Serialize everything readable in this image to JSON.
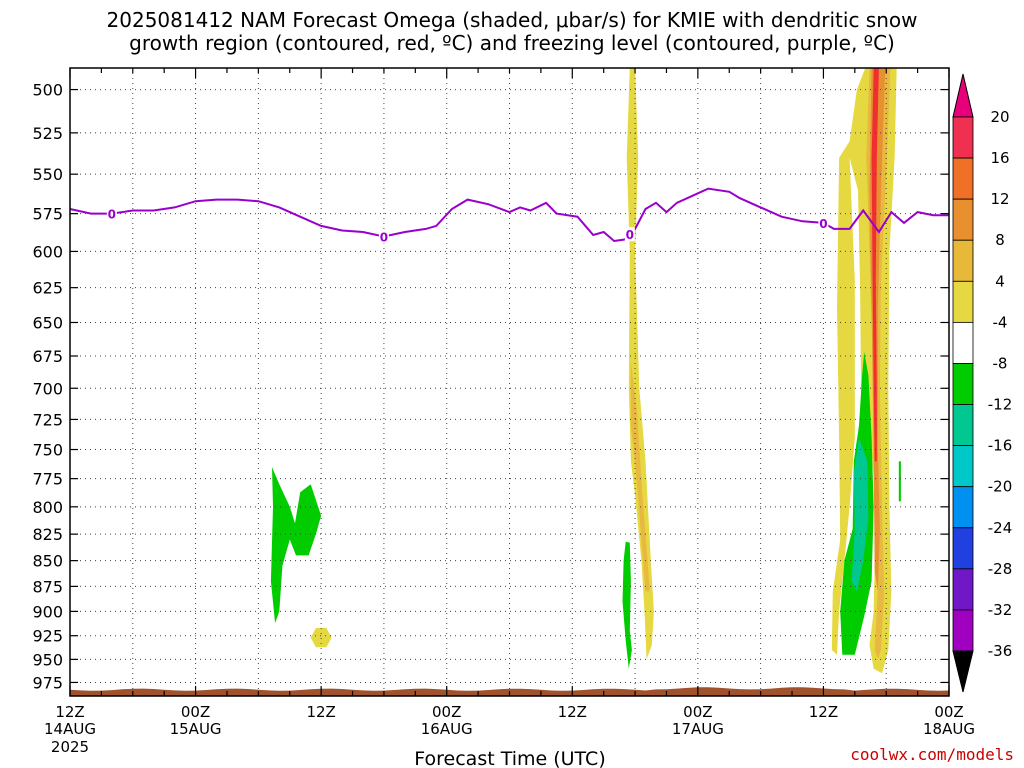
{
  "title_line1": "2025081412 NAM Forecast Omega (shaded, μbar/s) for KMIE with dendritic snow",
  "title_line2": "growth region (contoured, red, ºC) and freezing level (contoured, purple, ºC)",
  "xlabel": "Forecast Time (UTC)",
  "credit": "coolwx.com/models",
  "colors": {
    "freezing_line": "#9900cc",
    "ground": "#a0522d",
    "yellow": "#e6d840",
    "orange_light": "#e8b840",
    "orange": "#e69030",
    "red": "#f03030",
    "green": "#00cc00",
    "teal": "#00c890"
  },
  "chart_data": {
    "type": "heatmap",
    "ylabel": "",
    "yticks": [
      500,
      525,
      550,
      575,
      600,
      625,
      650,
      675,
      700,
      725,
      750,
      775,
      800,
      825,
      850,
      875,
      900,
      925,
      950,
      975
    ],
    "ylim": [
      488,
      990
    ],
    "xlim": [
      0,
      84
    ],
    "y_scale": "log",
    "y_reversed": true,
    "grid": true,
    "xticks": [
      {
        "x": 0,
        "line1": "12Z",
        "line2": "14AUG",
        "line3": "2025"
      },
      {
        "x": 12,
        "line1": "00Z",
        "line2": "15AUG",
        "line3": ""
      },
      {
        "x": 24,
        "line1": "12Z",
        "line2": "",
        "line3": ""
      },
      {
        "x": 36,
        "line1": "00Z",
        "line2": "16AUG",
        "line3": ""
      },
      {
        "x": 48,
        "line1": "12Z",
        "line2": "",
        "line3": ""
      },
      {
        "x": 60,
        "line1": "00Z",
        "line2": "17AUG",
        "line3": ""
      },
      {
        "x": 72,
        "line1": "12Z",
        "line2": "",
        "line3": ""
      },
      {
        "x": 84,
        "line1": "00Z",
        "line2": "18AUG",
        "line3": ""
      }
    ],
    "colorbar": {
      "labels": [
        "20",
        "16",
        "12",
        "8",
        "4",
        "-4",
        "-8",
        "-12",
        "-16",
        "-20",
        "-24",
        "-28",
        "-32",
        "-36"
      ],
      "colors": [
        "#f03050",
        "#f07028",
        "#e89030",
        "#e8b838",
        "#e6d840",
        "#ffffff",
        "#00cc00",
        "#00c890",
        "#00c8c8",
        "#0090f0",
        "#2040e0",
        "#7018c8",
        "#a000c0",
        "#a0a0a0"
      ],
      "top_arrow": "#e8007a",
      "bottom_arrow": "#000000"
    },
    "freezing_level": {
      "label": "0",
      "label_x": [
        4,
        30,
        53.5,
        72
      ],
      "points": [
        [
          0,
          572
        ],
        [
          2,
          575
        ],
        [
          4,
          575
        ],
        [
          6,
          573
        ],
        [
          8,
          573
        ],
        [
          10,
          571
        ],
        [
          12,
          567
        ],
        [
          14,
          566
        ],
        [
          16,
          566
        ],
        [
          18,
          567
        ],
        [
          20,
          571
        ],
        [
          22,
          577
        ],
        [
          24,
          583
        ],
        [
          26,
          586
        ],
        [
          28,
          587
        ],
        [
          30,
          590
        ],
        [
          32,
          587
        ],
        [
          34,
          585
        ],
        [
          35,
          583
        ],
        [
          36.5,
          572
        ],
        [
          38,
          566
        ],
        [
          40,
          569
        ],
        [
          42,
          574
        ],
        [
          43,
          571
        ],
        [
          44,
          573
        ],
        [
          45.5,
          568
        ],
        [
          46.5,
          575
        ],
        [
          48.5,
          577
        ],
        [
          50,
          589
        ],
        [
          51,
          587
        ],
        [
          52,
          593
        ],
        [
          53,
          592
        ],
        [
          54,
          585
        ],
        [
          55,
          572
        ],
        [
          56,
          568
        ],
        [
          57,
          574
        ],
        [
          58,
          568
        ],
        [
          60,
          562
        ],
        [
          61,
          559
        ],
        [
          63,
          561
        ],
        [
          64,
          565
        ],
        [
          66,
          571
        ],
        [
          68,
          577
        ],
        [
          70,
          580
        ],
        [
          72,
          581
        ],
        [
          73,
          585
        ],
        [
          74.5,
          585
        ],
        [
          75.8,
          573
        ],
        [
          77.3,
          587
        ],
        [
          78.5,
          574
        ],
        [
          79.7,
          581
        ],
        [
          81,
          574
        ],
        [
          82.5,
          576
        ],
        [
          84,
          576
        ]
      ]
    },
    "omega_regions": [
      {
        "value": 6,
        "color": "#e6d840",
        "points": [
          [
            53.5,
            488
          ],
          [
            54,
            488
          ],
          [
            54.3,
            540
          ],
          [
            54,
            600
          ],
          [
            54.4,
            700
          ],
          [
            55,
            760
          ],
          [
            55.5,
            850
          ],
          [
            55.8,
            900
          ],
          [
            55.6,
            935
          ],
          [
            55.1,
            950
          ],
          [
            54.9,
            900
          ],
          [
            54.6,
            850
          ],
          [
            54,
            790
          ],
          [
            53.6,
            760
          ],
          [
            53.4,
            700
          ],
          [
            53.5,
            600
          ],
          [
            53.2,
            540
          ]
        ]
      },
      {
        "value": 10,
        "color": "#e8b840",
        "points": [
          [
            53.6,
            680
          ],
          [
            54.2,
            720
          ],
          [
            54.7,
            790
          ],
          [
            55.2,
            850
          ],
          [
            55.4,
            880
          ],
          [
            55,
            880
          ],
          [
            54.6,
            830
          ],
          [
            54.1,
            770
          ],
          [
            53.6,
            730
          ]
        ]
      },
      {
        "value": -6,
        "color": "#00cc00",
        "points": [
          [
            53.1,
            832
          ],
          [
            53.5,
            833
          ],
          [
            53.6,
            870
          ],
          [
            53.5,
            920
          ],
          [
            53.7,
            940
          ],
          [
            53.4,
            960
          ],
          [
            53.1,
            930
          ],
          [
            52.8,
            890
          ],
          [
            52.9,
            850
          ]
        ]
      },
      {
        "value": -6,
        "color": "#00cc00",
        "points": [
          [
            19.3,
            765
          ],
          [
            20,
            780
          ],
          [
            21,
            800
          ],
          [
            21.5,
            815
          ],
          [
            22,
            787
          ],
          [
            23,
            780
          ],
          [
            24,
            808
          ],
          [
            23.5,
            825
          ],
          [
            22.8,
            845
          ],
          [
            21.6,
            845
          ],
          [
            21,
            830
          ],
          [
            20.3,
            855
          ],
          [
            20,
            900
          ],
          [
            19.6,
            912
          ],
          [
            19.2,
            870
          ],
          [
            19.4,
            800
          ]
        ]
      },
      {
        "value": 6,
        "color": "#e6d840",
        "points": [
          [
            23.5,
            917
          ],
          [
            24.5,
            917
          ],
          [
            25,
            927
          ],
          [
            24.5,
            937
          ],
          [
            23.5,
            937
          ],
          [
            23,
            927
          ]
        ]
      },
      {
        "value": 6,
        "color": "#e6d840",
        "points": [
          [
            76,
            488
          ],
          [
            79,
            488
          ],
          [
            78.8,
            540
          ],
          [
            78.3,
            600
          ],
          [
            78.2,
            700
          ],
          [
            78.3,
            800
          ],
          [
            78.5,
            880
          ],
          [
            78.2,
            940
          ],
          [
            77.6,
            965
          ],
          [
            76.8,
            960
          ],
          [
            76.4,
            935
          ],
          [
            76.8,
            900
          ],
          [
            77,
            800
          ],
          [
            76.4,
            730
          ],
          [
            75.6,
            700
          ],
          [
            75.5,
            625
          ],
          [
            75.3,
            560
          ],
          [
            74.5,
            540
          ],
          [
            75,
            620
          ],
          [
            75,
            740
          ],
          [
            74.5,
            800
          ],
          [
            74,
            850
          ],
          [
            73.5,
            900
          ],
          [
            73.3,
            945
          ],
          [
            72.8,
            940
          ],
          [
            72.9,
            880
          ],
          [
            73.6,
            830
          ],
          [
            73.5,
            740
          ],
          [
            73.3,
            640
          ],
          [
            73.5,
            540
          ],
          [
            74.5,
            530
          ],
          [
            75.2,
            500
          ]
        ]
      },
      {
        "value": 10,
        "color": "#e8b840",
        "points": [
          [
            76.4,
            488
          ],
          [
            78.4,
            488
          ],
          [
            78,
            550
          ],
          [
            77.5,
            620
          ],
          [
            77.4,
            700
          ],
          [
            77.6,
            800
          ],
          [
            77.8,
            880
          ],
          [
            77.5,
            940
          ],
          [
            77.2,
            950
          ],
          [
            76.9,
            940
          ],
          [
            77.2,
            880
          ],
          [
            77.2,
            800
          ],
          [
            76.8,
            700
          ],
          [
            76.4,
            600
          ],
          [
            76.1,
            540
          ]
        ]
      },
      {
        "value": 14,
        "color": "#e69030",
        "points": [
          [
            76.6,
            488
          ],
          [
            77.9,
            488
          ],
          [
            77.5,
            560
          ],
          [
            77.2,
            640
          ],
          [
            77.2,
            750
          ],
          [
            77.4,
            820
          ],
          [
            77.2,
            880
          ],
          [
            76.9,
            860
          ],
          [
            76.8,
            760
          ],
          [
            76.6,
            640
          ],
          [
            76.4,
            560
          ]
        ]
      },
      {
        "value": 18,
        "color": "#f03030",
        "points": [
          [
            76.8,
            488
          ],
          [
            77.3,
            488
          ],
          [
            77.1,
            540
          ],
          [
            77,
            620
          ],
          [
            77.1,
            700
          ],
          [
            77.1,
            760
          ],
          [
            76.9,
            760
          ],
          [
            76.8,
            700
          ],
          [
            76.7,
            620
          ],
          [
            76.6,
            540
          ]
        ]
      },
      {
        "value": -6,
        "color": "#00cc00",
        "points": [
          [
            75.9,
            672
          ],
          [
            76.3,
            690
          ],
          [
            76.6,
            740
          ],
          [
            76.8,
            800
          ],
          [
            76.6,
            870
          ],
          [
            75.9,
            905
          ],
          [
            75,
            945
          ],
          [
            73.8,
            945
          ],
          [
            73.6,
            900
          ],
          [
            74,
            850
          ],
          [
            74.8,
            820
          ],
          [
            74.9,
            760
          ],
          [
            75.4,
            730
          ],
          [
            75.7,
            690
          ]
        ]
      },
      {
        "value": -10,
        "color": "#00c890",
        "points": [
          [
            75.4,
            740
          ],
          [
            76.2,
            760
          ],
          [
            76.3,
            810
          ],
          [
            75.8,
            850
          ],
          [
            75.2,
            880
          ],
          [
            74.7,
            870
          ],
          [
            75,
            820
          ],
          [
            74.9,
            770
          ]
        ]
      },
      {
        "value": -6,
        "color": "#00cc00",
        "points": [
          [
            79.2,
            760
          ],
          [
            79.4,
            760
          ],
          [
            79.4,
            795
          ],
          [
            79.2,
            795
          ]
        ]
      }
    ]
  }
}
